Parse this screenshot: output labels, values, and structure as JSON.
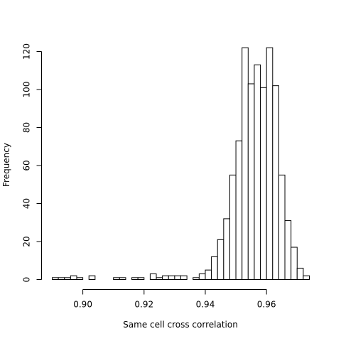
{
  "chart_data": {
    "type": "bar",
    "histogram": true,
    "title": "",
    "xlabel": "Same cell cross correlation",
    "ylabel": "Frequency",
    "bin_width": 0.002,
    "bin_start": 0.89,
    "counts": [
      1,
      1,
      1,
      2,
      1,
      0,
      2,
      0,
      0,
      0,
      1,
      1,
      0,
      1,
      1,
      0,
      3,
      1,
      2,
      2,
      2,
      2,
      0,
      1,
      3,
      5,
      12,
      21,
      32,
      55,
      73,
      122,
      103,
      113,
      101,
      122,
      102,
      55,
      31,
      17,
      6,
      2
    ],
    "xlim": [
      0.89,
      0.974
    ],
    "ylim": [
      0,
      120
    ],
    "x_ticks": [
      "0.90",
      "0.92",
      "0.94",
      "0.96"
    ],
    "x_tick_values": [
      0.9,
      0.92,
      0.94,
      0.96
    ],
    "y_ticks": [
      "0",
      "20",
      "40",
      "60",
      "80",
      "100",
      "120"
    ],
    "y_tick_values": [
      0,
      20,
      40,
      60,
      80,
      100,
      120
    ],
    "bar_fill": "#ffffff",
    "bar_stroke": "#000000",
    "grid": false
  }
}
